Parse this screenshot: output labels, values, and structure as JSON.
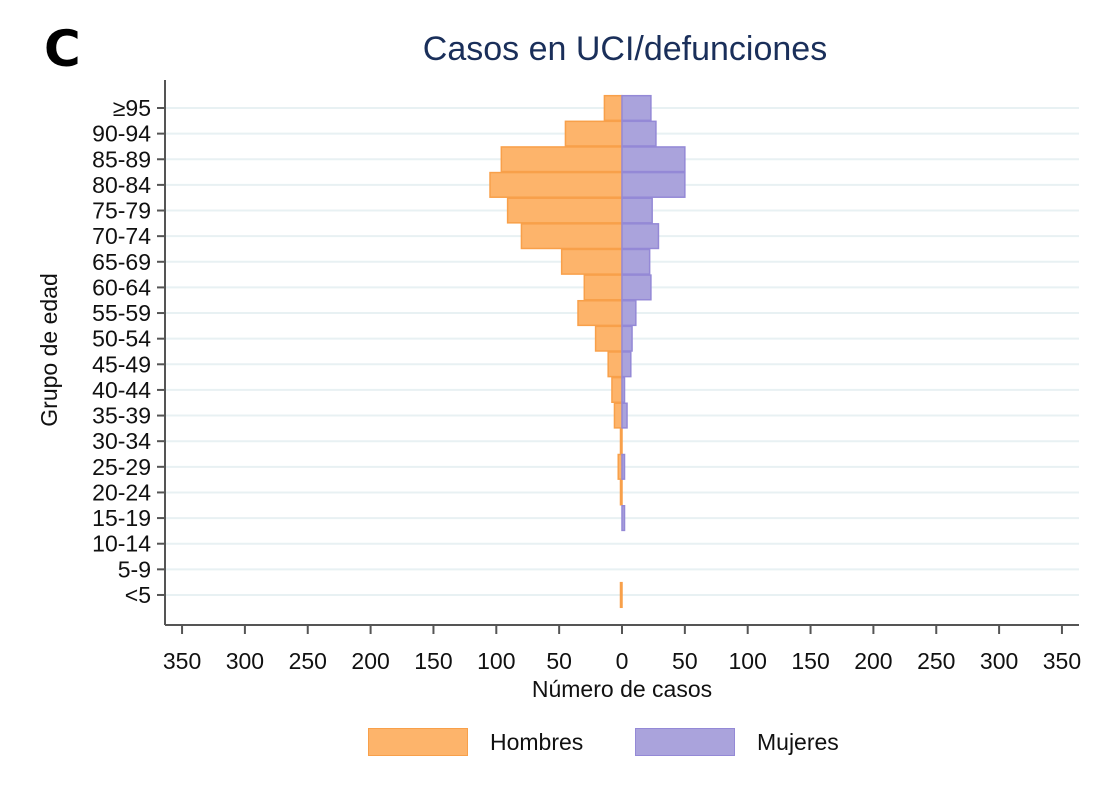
{
  "panel_letter": "C",
  "colors": {
    "hombres_fill": "#fdb46b",
    "hombres_stroke": "#f8a04a",
    "mujeres_fill": "#aaa3dc",
    "mujeres_stroke": "#9489d6",
    "grid": "#e8f1f3",
    "title": "#1a2f5a"
  },
  "chart_data": {
    "type": "bar",
    "orientation": "horizontal",
    "subtype": "population-pyramid",
    "title": "Casos en UCI/defunciones",
    "xlabel": "Número de casos",
    "ylabel": "Grupo de edad",
    "xlim": [
      -360,
      360
    ],
    "xticks": [
      -350,
      -300,
      -250,
      -200,
      -150,
      -100,
      -50,
      0,
      50,
      100,
      150,
      200,
      250,
      300,
      350
    ],
    "xtick_labels": [
      "350",
      "300",
      "250",
      "200",
      "150",
      "100",
      "50",
      "0",
      "50",
      "100",
      "150",
      "200",
      "250",
      "300",
      "350"
    ],
    "grid": true,
    "legend_position": "bottom",
    "categories": [
      "≥95",
      "90-94",
      "85-89",
      "80-84",
      "75-79",
      "70-74",
      "65-69",
      "60-64",
      "55-59",
      "50-54",
      "45-49",
      "40-44",
      "35-39",
      "30-34",
      "25-29",
      "20-24",
      "15-19",
      "10-14",
      "5-9",
      "<5"
    ],
    "series": [
      {
        "name": "Hombres",
        "side": "left",
        "values": [
          14,
          45,
          96,
          105,
          91,
          80,
          48,
          30,
          35,
          21,
          11,
          8,
          6,
          1,
          3,
          1,
          0,
          0,
          0,
          1
        ]
      },
      {
        "name": "Mujeres",
        "side": "right",
        "values": [
          23,
          27,
          50,
          50,
          24,
          29,
          22,
          23,
          11,
          8,
          7,
          2,
          4,
          0,
          2,
          0,
          2,
          0,
          0,
          0
        ]
      }
    ]
  }
}
